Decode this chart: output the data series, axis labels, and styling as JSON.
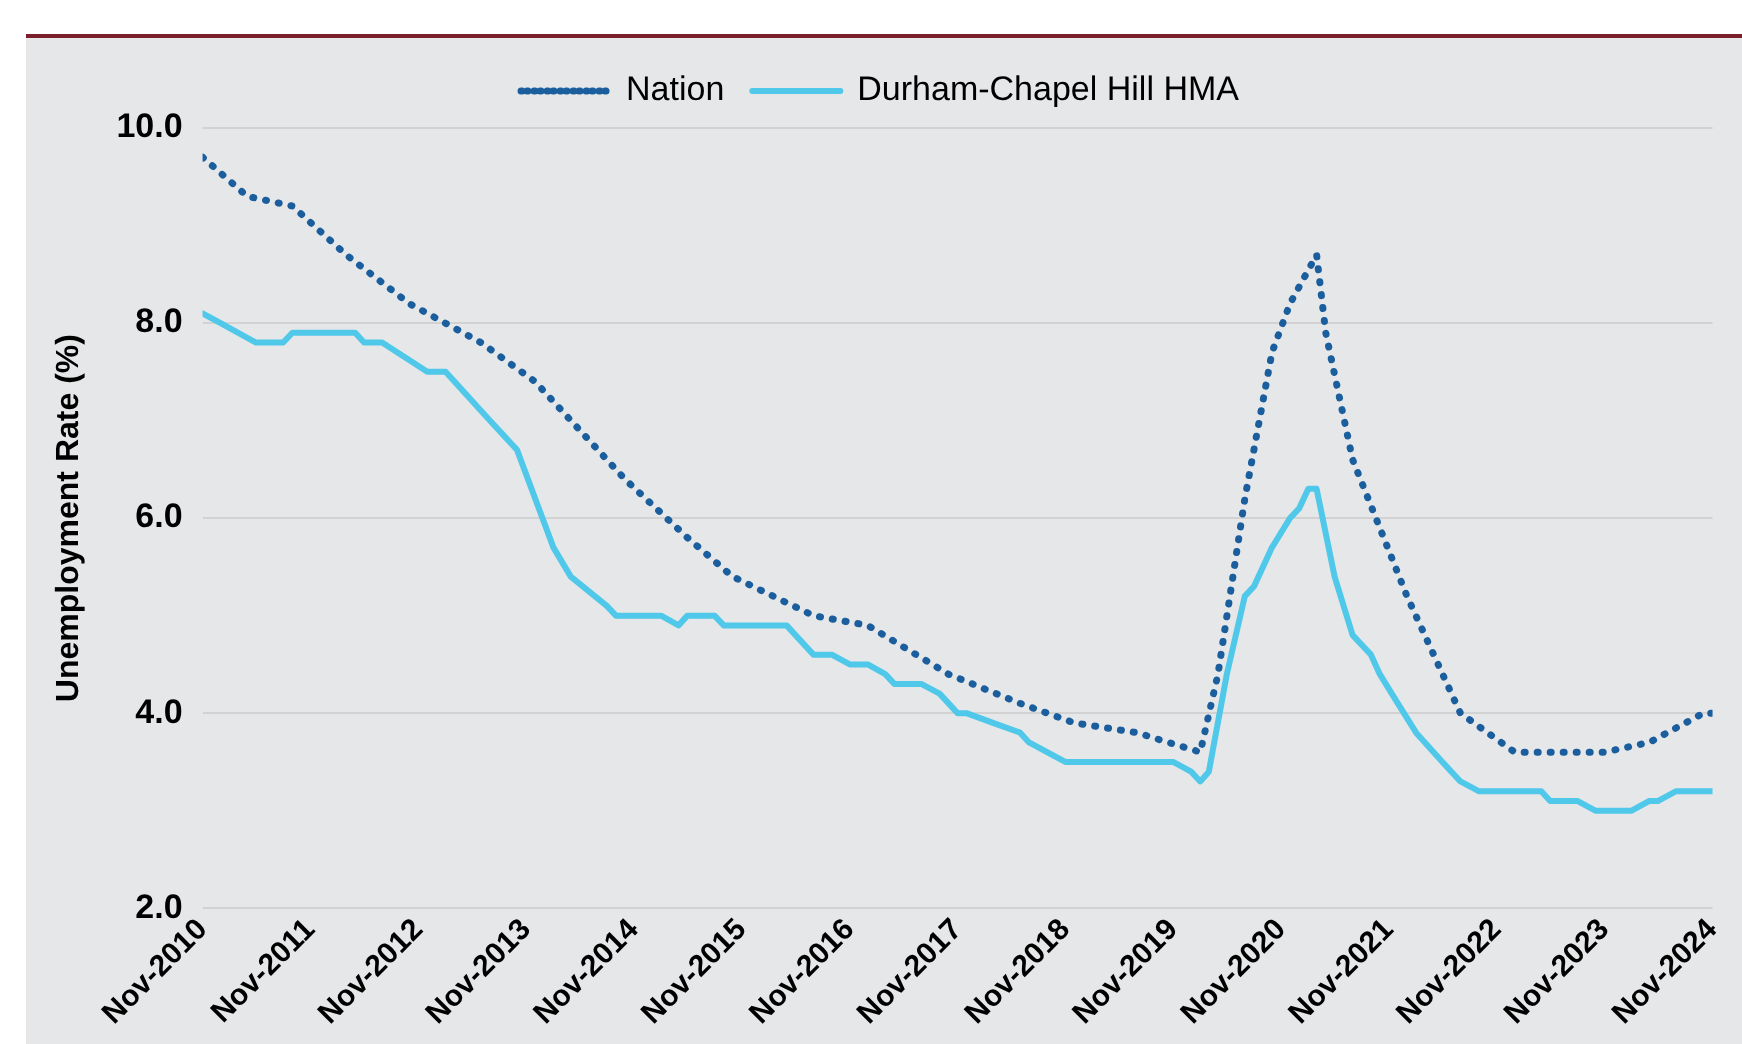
{
  "chart_data": {
    "type": "line",
    "ylabel": "Unemployment Rate (%)",
    "legend": "top",
    "grid": "y",
    "marker": "none",
    "xlim": [
      "2010-11",
      "2024-11"
    ],
    "xticks": [
      {
        "value": "2010-11",
        "label": "Nov-2010"
      },
      {
        "value": "2011-11",
        "label": "Nov-2011"
      },
      {
        "value": "2012-11",
        "label": "Nov-2012"
      },
      {
        "value": "2013-11",
        "label": "Nov-2013"
      },
      {
        "value": "2014-11",
        "label": "Nov-2014"
      },
      {
        "value": "2015-11",
        "label": "Nov-2015"
      },
      {
        "value": "2016-11",
        "label": "Nov-2016"
      },
      {
        "value": "2017-11",
        "label": "Nov-2017"
      },
      {
        "value": "2018-11",
        "label": "Nov-2018"
      },
      {
        "value": "2019-11",
        "label": "Nov-2019"
      },
      {
        "value": "2020-11",
        "label": "Nov-2020"
      },
      {
        "value": "2021-11",
        "label": "Nov-2021"
      },
      {
        "value": "2022-11",
        "label": "Nov-2022"
      },
      {
        "value": "2023-11",
        "label": "Nov-2023"
      },
      {
        "value": "2024-11",
        "label": "Nov-2024"
      }
    ],
    "ylim": [
      2,
      10
    ],
    "yticks": [
      {
        "value": 2,
        "label": "2.0"
      },
      {
        "value": 4,
        "label": "4.0"
      },
      {
        "value": 6,
        "label": "6.0"
      },
      {
        "value": 8,
        "label": "8.0"
      },
      {
        "value": 10,
        "label": "10.0"
      }
    ],
    "series": [
      {
        "name": "Nation",
        "color": "#1b5e9e",
        "line_style": "dotted",
        "x": [
          "2010-11",
          "2011-04",
          "2011-09",
          "2012-03",
          "2012-10",
          "2013-06",
          "2013-12",
          "2014-10",
          "2015-05",
          "2015-10",
          "2016-07",
          "2017-01",
          "2017-10",
          "2018-06",
          "2018-12",
          "2019-07",
          "2020-02",
          "2020-04",
          "2020-07",
          "2020-10",
          "2020-12",
          "2021-03",
          "2021-04",
          "2021-07",
          "2022-01",
          "2022-07",
          "2023-01",
          "2023-11",
          "2024-04",
          "2024-10",
          "2024-11"
        ],
        "values": [
          9.7,
          9.3,
          9.2,
          8.7,
          8.2,
          7.8,
          7.4,
          6.4,
          5.8,
          5.4,
          5.0,
          4.9,
          4.4,
          4.1,
          3.9,
          3.8,
          3.6,
          4.4,
          6.2,
          7.7,
          8.2,
          8.7,
          7.9,
          6.6,
          5.2,
          4.0,
          3.6,
          3.6,
          3.7,
          4.0,
          4.0
        ]
      },
      {
        "name": "Durham-Chapel Hill HMA",
        "color": "#4fc8ea",
        "line_style": "solid",
        "x": [
          "2010-11",
          "2011-01",
          "2011-05",
          "2011-08",
          "2011-09",
          "2012-04",
          "2012-05",
          "2012-07",
          "2012-12",
          "2013-02",
          "2013-07",
          "2013-10",
          "2014-02",
          "2014-04",
          "2014-08",
          "2014-09",
          "2015-02",
          "2015-04",
          "2015-05",
          "2015-08",
          "2015-09",
          "2016-04",
          "2016-05",
          "2016-07",
          "2016-09",
          "2016-11",
          "2017-01",
          "2017-03",
          "2017-04",
          "2017-07",
          "2017-09",
          "2017-11",
          "2017-12",
          "2018-03",
          "2018-06",
          "2018-07",
          "2018-11",
          "2019-11",
          "2020-01",
          "2020-02",
          "2020-03",
          "2020-05",
          "2020-07",
          "2020-08",
          "2020-10",
          "2020-12",
          "2021-01",
          "2021-02",
          "2021-03",
          "2021-05",
          "2021-07",
          "2021-09",
          "2021-10",
          "2021-12",
          "2022-02",
          "2022-05",
          "2022-07",
          "2022-09",
          "2023-04",
          "2023-05",
          "2023-08",
          "2023-10",
          "2024-02",
          "2024-04",
          "2024-05",
          "2024-07",
          "2024-11"
        ],
        "values": [
          8.1,
          8.0,
          7.8,
          7.8,
          7.9,
          7.9,
          7.8,
          7.8,
          7.5,
          7.5,
          7.0,
          6.7,
          5.7,
          5.4,
          5.1,
          5.0,
          5.0,
          4.9,
          5.0,
          5.0,
          4.9,
          4.9,
          4.8,
          4.6,
          4.6,
          4.5,
          4.5,
          4.4,
          4.3,
          4.3,
          4.2,
          4.0,
          4.0,
          3.9,
          3.8,
          3.7,
          3.5,
          3.5,
          3.4,
          3.3,
          3.4,
          4.4,
          5.2,
          5.3,
          5.7,
          6.0,
          6.1,
          6.3,
          6.3,
          5.4,
          4.8,
          4.6,
          4.4,
          4.1,
          3.8,
          3.5,
          3.3,
          3.2,
          3.2,
          3.1,
          3.1,
          3.0,
          3.0,
          3.1,
          3.1,
          3.2,
          3.2
        ]
      }
    ]
  }
}
